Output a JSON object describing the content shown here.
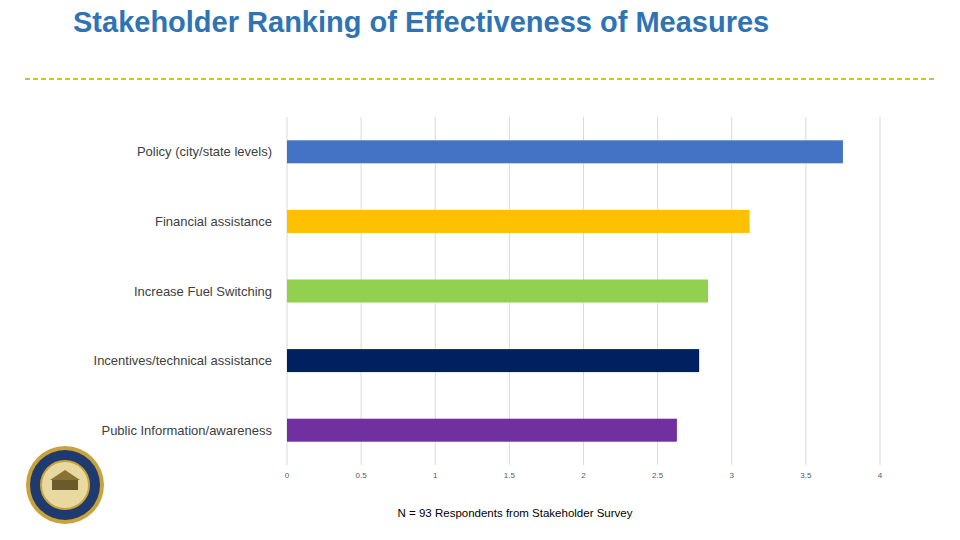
{
  "chart_data": {
    "type": "bar",
    "orientation": "horizontal",
    "title": "Stakeholder Ranking of Effectiveness of Measures",
    "categories": [
      "Policy (city/state levels)",
      "Financial assistance",
      "Increase Fuel Switching",
      "Incentives/technical assistance",
      "Public Information/awareness"
    ],
    "values": [
      3.75,
      3.12,
      2.84,
      2.78,
      2.63
    ],
    "colors": [
      "#4472c4",
      "#ffc000",
      "#92d050",
      "#002060",
      "#7030a0"
    ],
    "xlim": [
      0,
      4
    ],
    "xticks": [
      0,
      0.5,
      1,
      1.5,
      2,
      2.5,
      3,
      3.5,
      4
    ],
    "grid": true,
    "annotations": [
      "N = 93 Respondents from Stakeholder Survey"
    ]
  }
}
